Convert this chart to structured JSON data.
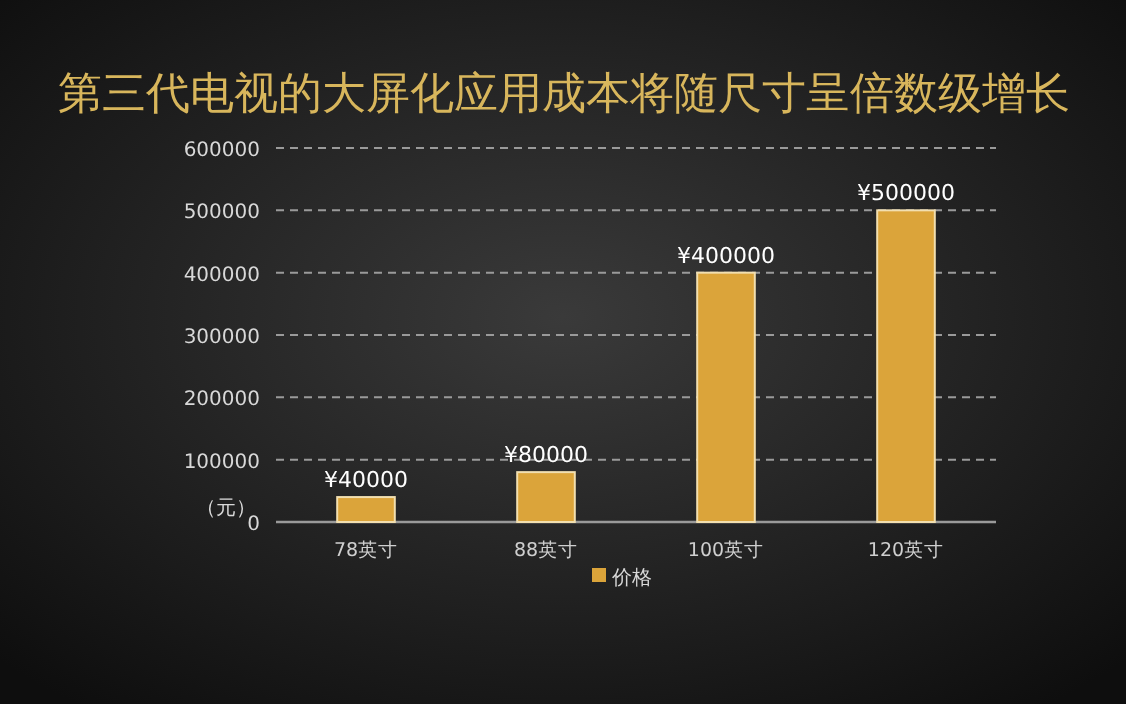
{
  "chart_data": {
    "type": "bar",
    "title": "第三代电视的大屏化应用成本将随尺寸呈倍数级增长",
    "ylabel": "（元）",
    "categories": [
      "78英寸",
      "88英寸",
      "100英寸",
      "120英寸"
    ],
    "series": [
      {
        "name": "价格",
        "color": "#dba43a",
        "values": [
          40000,
          80000,
          400000,
          500000
        ],
        "value_labels": [
          "¥40000",
          "¥80000",
          "¥400000",
          "¥500000"
        ]
      }
    ],
    "ylim": [
      0,
      600000
    ],
    "yticks": [
      0,
      100000,
      200000,
      300000,
      400000,
      500000,
      600000
    ],
    "grid": "y",
    "legend": "bottom"
  }
}
